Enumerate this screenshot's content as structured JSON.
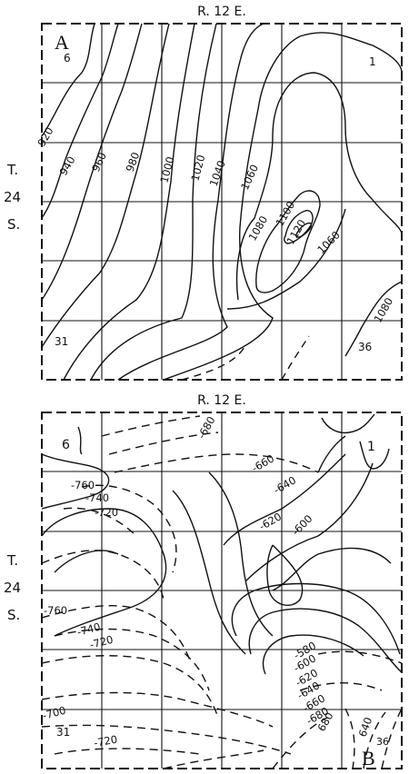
{
  "map_a": {
    "panel_letter": "A",
    "range_label": "R. 12 E.",
    "township": [
      "T.",
      "24",
      "S."
    ],
    "sections": {
      "top_left": "6",
      "top_right": "1",
      "bottom_left": "31",
      "bottom_right": "36"
    },
    "contours": [
      {
        "value": "920"
      },
      {
        "value": "940"
      },
      {
        "value": "960"
      },
      {
        "value": "980"
      },
      {
        "value": "1000"
      },
      {
        "value": "1020"
      },
      {
        "value": "1040"
      },
      {
        "value": "1060"
      },
      {
        "value": "1080"
      },
      {
        "value": "1100"
      },
      {
        "value": "1120"
      },
      {
        "value": "1060"
      },
      {
        "value": "1080"
      }
    ]
  },
  "map_b": {
    "panel_letter": "B",
    "range_label": "R. 12 E.",
    "township": [
      "T.",
      "24",
      "S."
    ],
    "sections": {
      "top_left": "6",
      "top_right": "1",
      "bottom_left": "31",
      "bottom_right": "36"
    },
    "contours": [
      {
        "value": "-680"
      },
      {
        "value": "-660"
      },
      {
        "value": "-640"
      },
      {
        "value": "-620"
      },
      {
        "value": "-600"
      },
      {
        "value": "-760"
      },
      {
        "value": "-740"
      },
      {
        "value": "-720"
      },
      {
        "value": "-760"
      },
      {
        "value": "-740"
      },
      {
        "value": "-720"
      },
      {
        "value": "-580"
      },
      {
        "value": "-600"
      },
      {
        "value": "-620"
      },
      {
        "value": "-640"
      },
      {
        "value": "-660"
      },
      {
        "value": "-680"
      },
      {
        "value": "-700"
      },
      {
        "value": "-720"
      },
      {
        "value": "680"
      },
      {
        "value": "640"
      }
    ]
  }
}
